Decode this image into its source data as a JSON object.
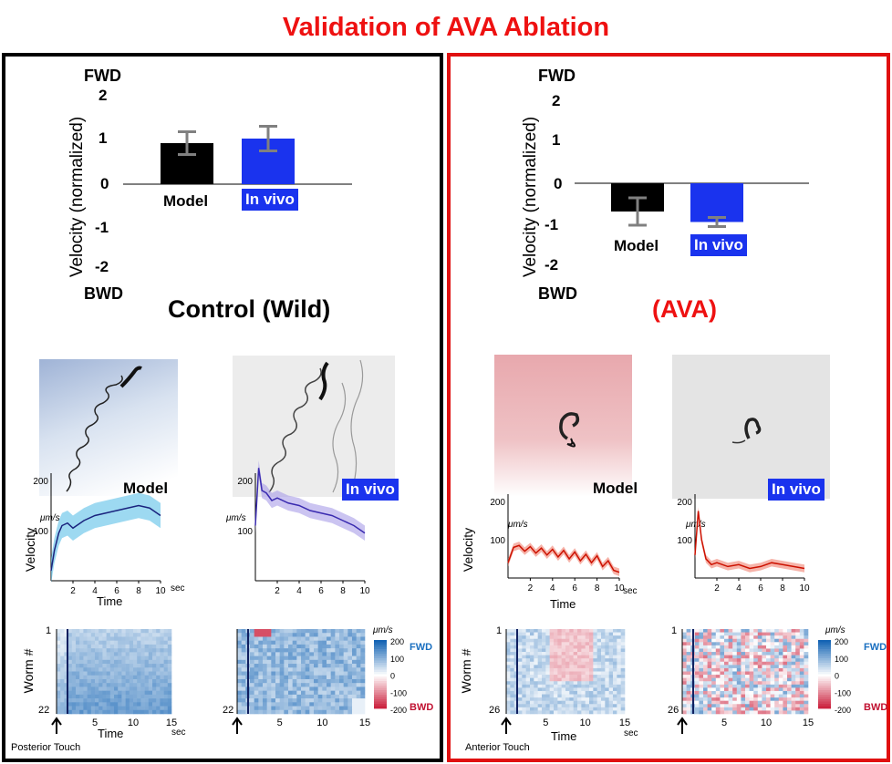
{
  "title": "Validation of AVA Ablation",
  "colors": {
    "model": "#000000",
    "invivo": "#1a33ee",
    "accent": "#ee1111"
  },
  "panels": {
    "left": {
      "subtitle": "Control (Wild)",
      "touch_label": "Posterior Touch",
      "image_labels": {
        "model": "Model",
        "invivo": "In vivo"
      }
    },
    "right": {
      "subtitle": "(AVA)",
      "touch_label": "Anterior Touch",
      "image_labels": {
        "model": "Model",
        "invivo": "In vivo"
      }
    }
  },
  "bar_axis": {
    "fwd": "FWD",
    "bwd": "BWD",
    "ylabel": "Velocity (normalized)",
    "ticks": [
      "2",
      "1",
      "0",
      "-1",
      "-2"
    ]
  },
  "trace_axis": {
    "unit": "μm/s",
    "ylabel": "Velocity",
    "xlabel": "Time",
    "xunit": "sec"
  },
  "heatmap_axis": {
    "ylabel": "Worm #",
    "xlabel": "Time",
    "xunit": "sec",
    "unit": "μm/s",
    "fwd": "FWD",
    "bwd": "BWD",
    "scale_ticks": [
      "200",
      "100",
      "0",
      "-100",
      "-200"
    ]
  },
  "chart_data": [
    {
      "type": "bar",
      "title": "Control (Wild)",
      "ylabel": "Velocity (normalized)",
      "ylim": [
        -2,
        2
      ],
      "categories": [
        "Model",
        "In vivo"
      ],
      "values": [
        0.9,
        1.0
      ],
      "errors": [
        0.25,
        0.27
      ]
    },
    {
      "type": "bar",
      "title": "(AVA)",
      "ylabel": "Velocity (normalized)",
      "ylim": [
        -2,
        2
      ],
      "categories": [
        "Model",
        "In vivo"
      ],
      "values": [
        -0.62,
        -0.85
      ],
      "errors": [
        0.3,
        0.1
      ]
    },
    {
      "type": "line",
      "xlabel": "Time",
      "ylabel": "Velocity",
      "unit": "μm/s",
      "yticks": [
        100,
        200
      ],
      "xticks": [
        2,
        4,
        6,
        8,
        10
      ],
      "x": [
        0,
        0.3,
        0.7,
        1,
        1.5,
        2,
        3,
        4,
        5,
        6,
        7,
        8,
        9,
        10
      ],
      "y": [
        20,
        60,
        95,
        110,
        115,
        105,
        120,
        130,
        135,
        140,
        145,
        150,
        145,
        130
      ],
      "band": 25,
      "color": "#1a237e",
      "fill": "#5bc0e8"
    },
    {
      "type": "line",
      "xlabel": "",
      "ylabel": "",
      "unit": "μm/s",
      "yticks": [
        100,
        200
      ],
      "xticks": [
        2,
        4,
        6,
        8,
        10
      ],
      "x": [
        0,
        0.3,
        0.6,
        1,
        1.5,
        2,
        3,
        4,
        5,
        6,
        7,
        8,
        9,
        10
      ],
      "y": [
        110,
        225,
        180,
        175,
        160,
        165,
        155,
        150,
        140,
        135,
        130,
        120,
        110,
        95
      ],
      "band": 15,
      "color": "#3a2bb0",
      "fill": "#a89ce8"
    },
    {
      "type": "line",
      "xlabel": "Time",
      "ylabel": "Velocity",
      "unit": "μm/s",
      "yticks": [
        100,
        200
      ],
      "xticks": [
        2,
        4,
        6,
        8,
        10
      ],
      "x": [
        0,
        0.5,
        1,
        1.5,
        2,
        2.5,
        3,
        3.5,
        4,
        4.5,
        5,
        5.5,
        6,
        6.5,
        7,
        7.5,
        8,
        8.5,
        9,
        9.5,
        10
      ],
      "y": [
        40,
        80,
        85,
        70,
        82,
        65,
        78,
        60,
        75,
        55,
        72,
        50,
        68,
        45,
        62,
        40,
        58,
        30,
        45,
        20,
        15
      ],
      "band": 10,
      "color": "#cc1100",
      "fill": "#f08070"
    },
    {
      "type": "line",
      "xlabel": "",
      "ylabel": "",
      "unit": "μm/s",
      "yticks": [
        100,
        200
      ],
      "xticks": [
        2,
        4,
        6,
        8,
        10
      ],
      "x": [
        0,
        0.3,
        0.6,
        1,
        1.5,
        2,
        3,
        4,
        5,
        6,
        7,
        8,
        9,
        10
      ],
      "y": [
        60,
        175,
        100,
        50,
        35,
        40,
        30,
        35,
        25,
        30,
        40,
        35,
        30,
        25
      ],
      "band": 10,
      "color": "#cc1100",
      "fill": "#f08070"
    },
    {
      "type": "heatmap",
      "rows_label": [
        "1",
        "22"
      ],
      "xticks": [
        5,
        10,
        15
      ],
      "pattern": "fwd-dominant"
    },
    {
      "type": "heatmap",
      "rows_label": [
        "1",
        "22"
      ],
      "xticks": [
        5,
        10,
        15
      ],
      "pattern": "fwd-strong"
    },
    {
      "type": "heatmap",
      "rows_label": [
        "1",
        "26"
      ],
      "xticks": [
        5,
        10,
        15
      ],
      "pattern": "mixed-bwd"
    },
    {
      "type": "heatmap",
      "rows_label": [
        "1",
        "26"
      ],
      "xticks": [
        5,
        10,
        15
      ],
      "pattern": "mixed"
    }
  ]
}
